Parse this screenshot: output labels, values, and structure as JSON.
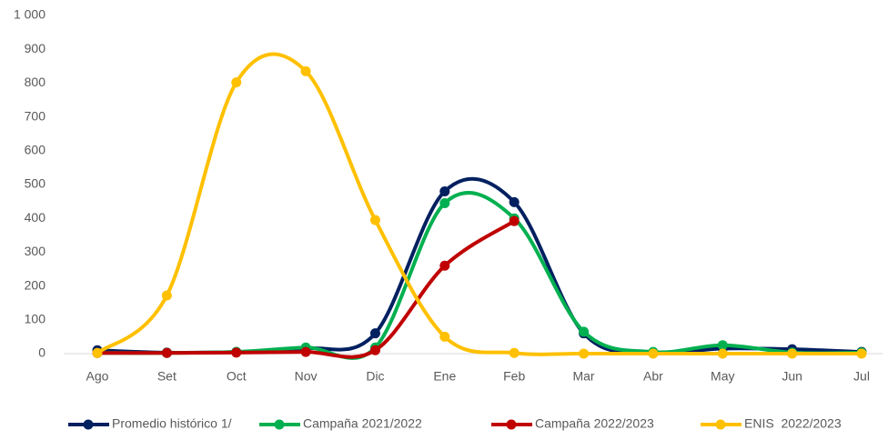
{
  "chart_data": {
    "type": "line",
    "categories": [
      "Ago",
      "Set",
      "Oct",
      "Nov",
      "Dic",
      "Ene",
      "Feb",
      "Mar",
      "Abr",
      "May",
      "Jun",
      "Jul"
    ],
    "ylim": [
      0,
      1000
    ],
    "yticks": [
      0,
      100,
      200,
      300,
      400,
      500,
      600,
      700,
      800,
      900,
      {
        "value": 1000,
        "label": "1 000"
      }
    ],
    "grid": false,
    "legend": "bottom",
    "series": [
      {
        "name": "Promedio histórico 1/",
        "color": "#002060",
        "values": [
          10,
          3,
          5,
          15,
          60,
          480,
          448,
          60,
          3,
          15,
          13,
          5
        ]
      },
      {
        "name": "Campaña 2021/2022",
        "color": "#00b050",
        "values": [
          2,
          2,
          5,
          18,
          18,
          445,
          400,
          65,
          5,
          25,
          3,
          3
        ]
      },
      {
        "name": "Campaña 2022/2023",
        "color": "#c00000",
        "values": [
          2,
          2,
          3,
          5,
          10,
          260,
          392,
          null,
          null,
          null,
          null,
          null
        ]
      },
      {
        "name": "ENIS  2022/2023",
        "color": "#ffc000",
        "values": [
          2,
          172,
          802,
          835,
          395,
          50,
          2,
          0,
          0,
          0,
          0,
          0
        ]
      }
    ]
  }
}
